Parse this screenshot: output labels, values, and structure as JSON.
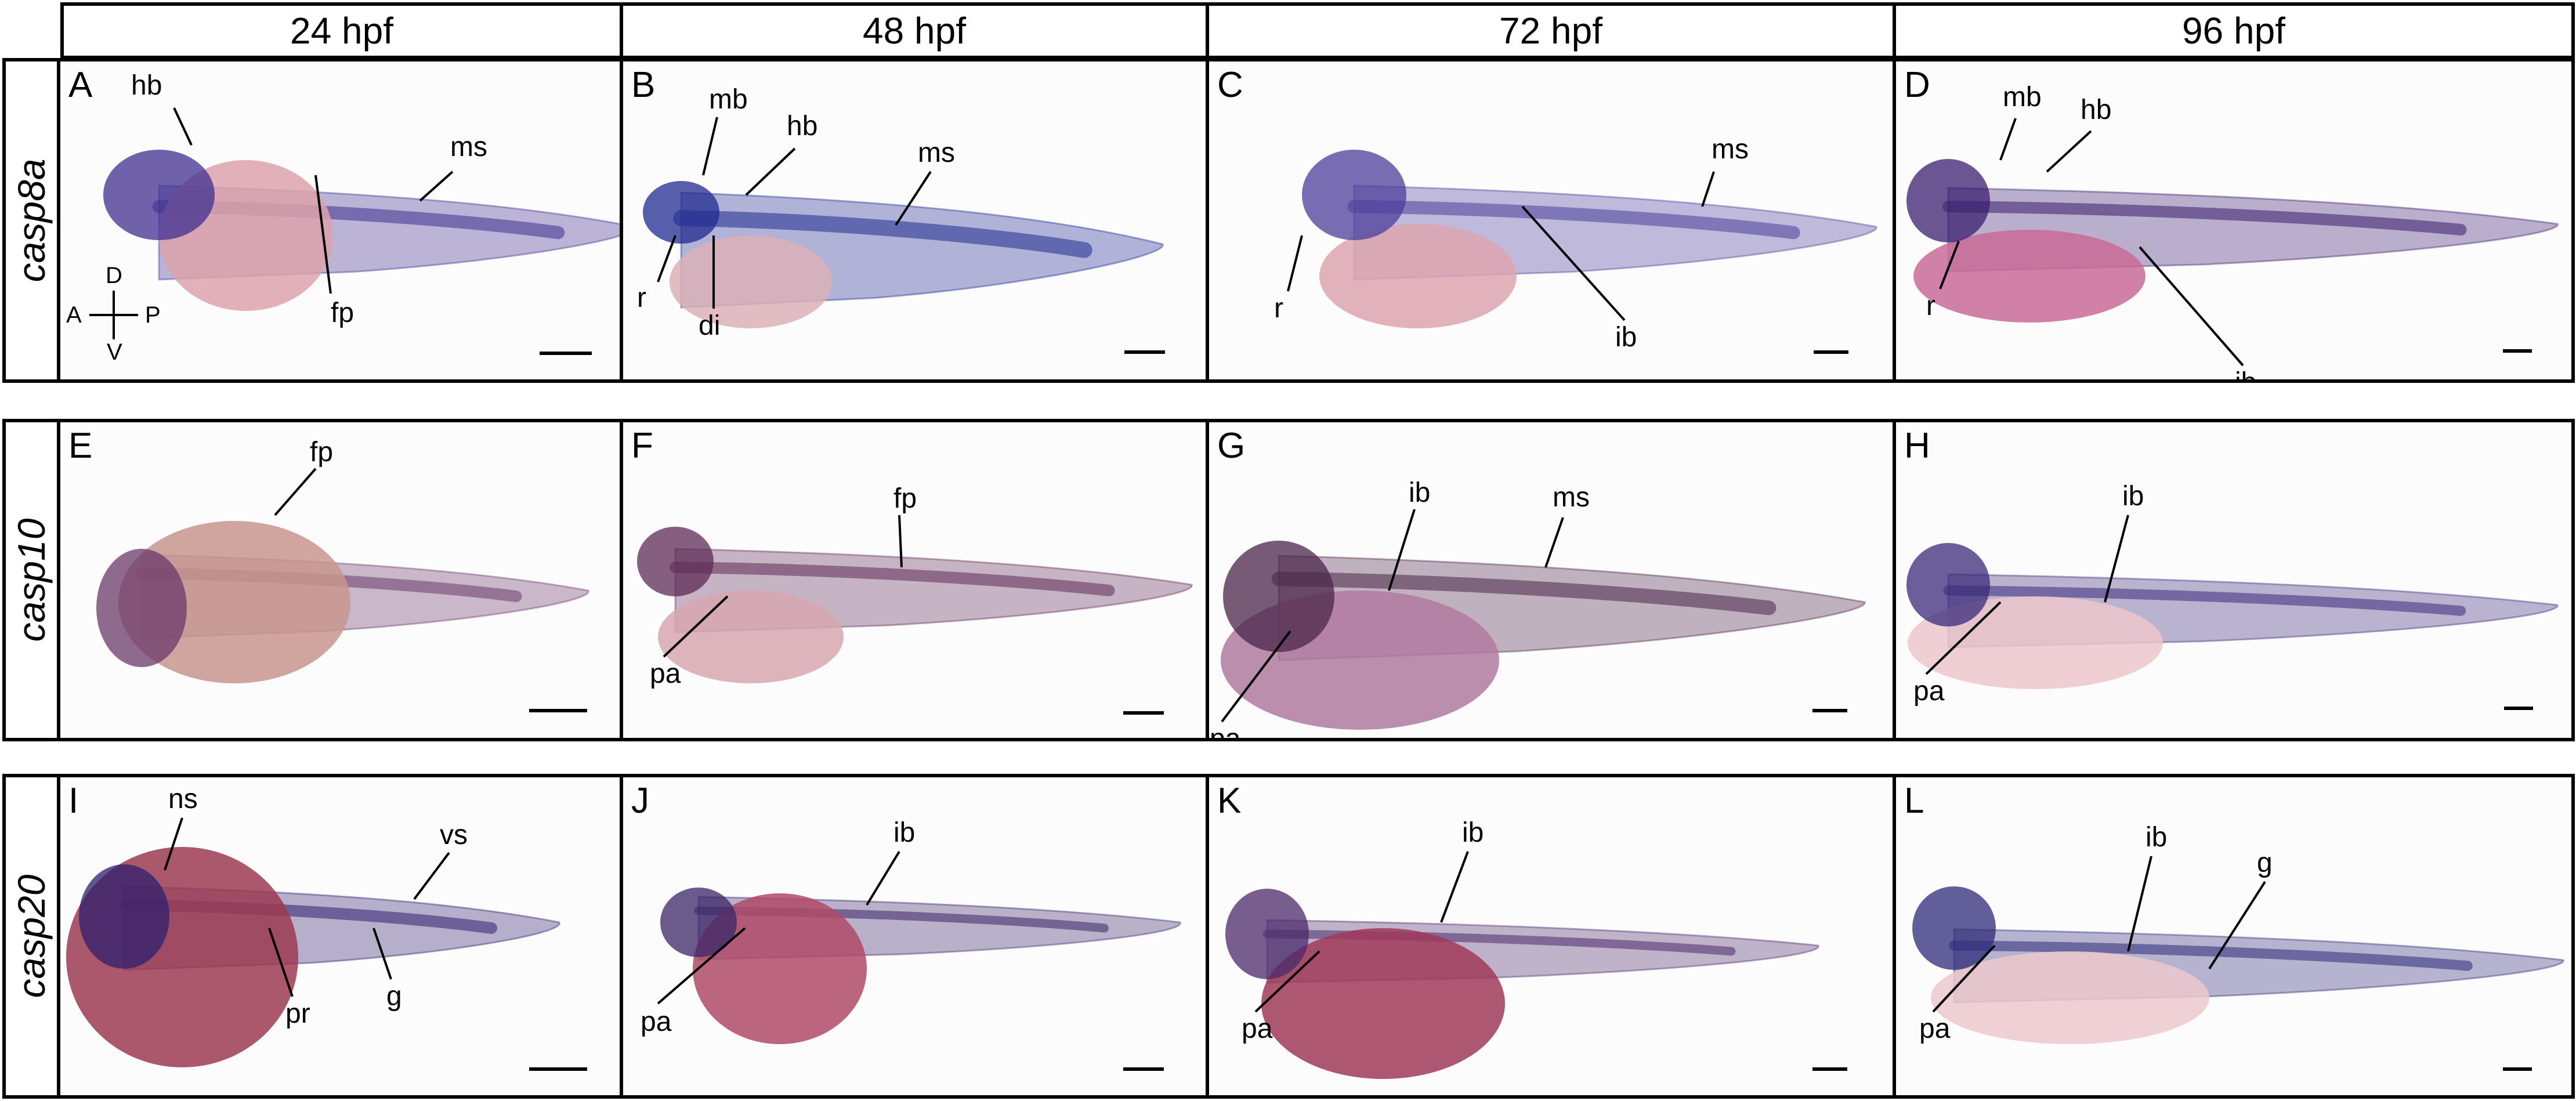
{
  "columns": [
    "24 hpf",
    "48 hpf",
    "72 hpf",
    "96 hpf"
  ],
  "rows": [
    {
      "gene": "casp8a",
      "panels": [
        {
          "label": "A",
          "annotations": [
            "hb",
            "ms",
            "fp"
          ],
          "stain": "#3f2f8f",
          "yolk": "#dca2ac"
        },
        {
          "label": "B",
          "annotations": [
            "mb",
            "hb",
            "ms",
            "r",
            "di"
          ],
          "stain": "#1f2a8f",
          "yolk": "#dcb0b8"
        },
        {
          "label": "C",
          "annotations": [
            "ms",
            "r",
            "ib"
          ],
          "stain": "#4b3e9a",
          "yolk": "#dca4b0"
        },
        {
          "label": "D",
          "annotations": [
            "mb",
            "hb",
            "r",
            "ib"
          ],
          "stain": "#3a1e6e",
          "yolk": "#c96b98"
        }
      ]
    },
    {
      "gene": "casp10",
      "panels": [
        {
          "label": "E",
          "annotations": [
            "fp"
          ],
          "stain": "#6a3a6a",
          "yolk": "#c8958e"
        },
        {
          "label": "F",
          "annotations": [
            "fp",
            "pa"
          ],
          "stain": "#5e2a55",
          "yolk": "#d7a7b0"
        },
        {
          "label": "G",
          "annotations": [
            "ib",
            "ms",
            "pa"
          ],
          "stain": "#4a2548",
          "yolk": "#b07aa0"
        },
        {
          "label": "H",
          "annotations": [
            "ib",
            "pa"
          ],
          "stain": "#3a2a7a",
          "yolk": "#ecc5cd"
        }
      ]
    },
    {
      "gene": "casp20",
      "panels": [
        {
          "label": "I",
          "annotations": [
            "ns",
            "vs",
            "g",
            "pr"
          ],
          "stain": "#2e1f6e",
          "yolk": "#9c3a52"
        },
        {
          "label": "J",
          "annotations": [
            "ib",
            "pa"
          ],
          "stain": "#3a2566",
          "yolk": "#b04a68"
        },
        {
          "label": "K",
          "annotations": [
            "ib",
            "pa"
          ],
          "stain": "#4a2a6a",
          "yolk": "#a03a5a"
        },
        {
          "label": "L",
          "annotations": [
            "ib",
            "g",
            "pa"
          ],
          "stain": "#2e2a78",
          "yolk": "#ecc8cc"
        }
      ]
    }
  ],
  "axes": {
    "d": "D",
    "v": "V",
    "a": "A",
    "p": "P"
  }
}
